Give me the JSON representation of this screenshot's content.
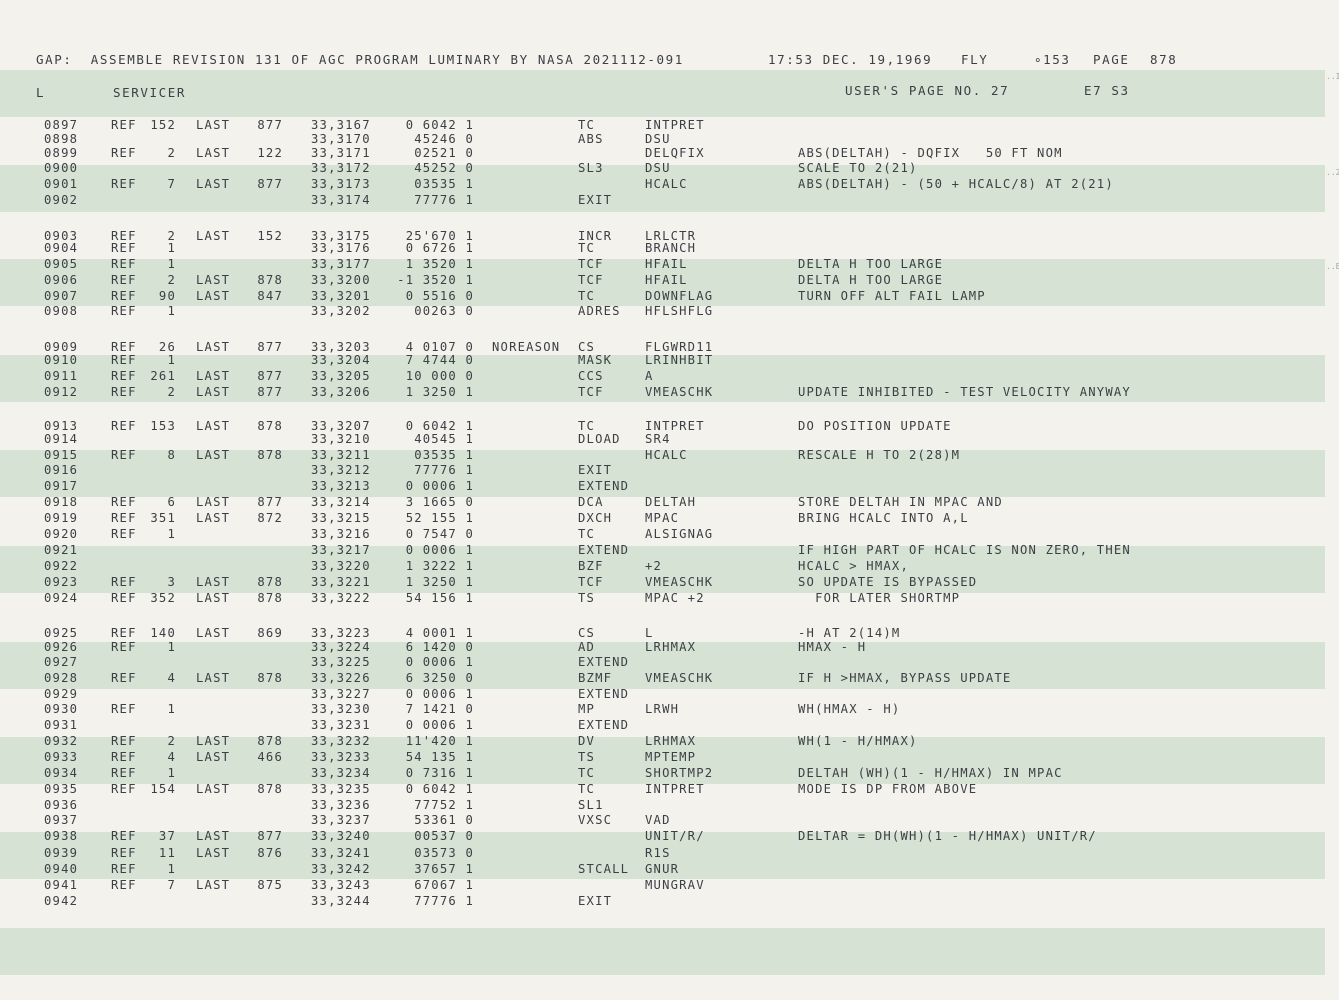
{
  "header": {
    "assembly": "GAP:  ASSEMBLE REVISION 131 OF AGC PROGRAM LUMINARY BY NASA 2021112-091",
    "timestamp": "17:53 DEC. 19,1969",
    "mode": "FLY",
    "counter": "∘153",
    "page_label": "PAGE",
    "page_number": "878"
  },
  "subheader": {
    "column_l": "L",
    "section": "SERVICER",
    "users_page": "USER'S PAGE NO. 27",
    "code": "E7 S3"
  },
  "rows": [
    {
      "line": "0897",
      "ref": "REF",
      "ref_n": "152",
      "last": "LAST",
      "last_n": "877",
      "addr": "33,3167",
      "word": "0 6042 1",
      "label": "",
      "op": "TC",
      "operand": "INTPRET",
      "comment": ""
    },
    {
      "line": "0898",
      "ref": "",
      "ref_n": "",
      "last": "",
      "last_n": "",
      "addr": "33,3170",
      "word": "45246 0",
      "label": "",
      "op": "ABS",
      "operand": "DSU",
      "comment": ""
    },
    {
      "line": "0899",
      "ref": "REF",
      "ref_n": "2",
      "last": "LAST",
      "last_n": "122",
      "addr": "33,3171",
      "word": "02521 0",
      "label": "",
      "op": "",
      "operand": "DELQFIX",
      "comment": "ABS(DELTAH) - DQFIX   50 FT NOM"
    },
    {
      "line": "0900",
      "ref": "",
      "ref_n": "",
      "last": "",
      "last_n": "",
      "addr": "33,3172",
      "word": "45252 0",
      "label": "",
      "op": "SL3",
      "operand": "DSU",
      "comment": "SCALE TO 2(21)"
    },
    {
      "line": "0901",
      "ref": "REF",
      "ref_n": "7",
      "last": "LAST",
      "last_n": "877",
      "addr": "33,3173",
      "word": "03535 1",
      "label": "",
      "op": "",
      "operand": "HCALC",
      "comment": "ABS(DELTAH) - (50 + HCALC/8) AT 2(21)"
    },
    {
      "line": "0902",
      "ref": "",
      "ref_n": "",
      "last": "",
      "last_n": "",
      "addr": "33,3174",
      "word": "77776 1",
      "label": "",
      "op": "EXIT",
      "operand": "",
      "comment": ""
    },
    {
      "line": "0903",
      "ref": "REF",
      "ref_n": "2",
      "last": "LAST",
      "last_n": "152",
      "addr": "33,3175",
      "word": "25'670 1",
      "label": "",
      "op": "INCR",
      "operand": "LRLCTR",
      "comment": ""
    },
    {
      "line": "0904",
      "ref": "REF",
      "ref_n": "1",
      "last": "",
      "last_n": "",
      "addr": "33,3176",
      "word": "0 6726 1",
      "label": "",
      "op": "TC",
      "operand": "BRANCH",
      "comment": ""
    },
    {
      "line": "0905",
      "ref": "REF",
      "ref_n": "1",
      "last": "",
      "last_n": "",
      "addr": "33,3177",
      "word": "1 3520 1",
      "label": "",
      "op": "TCF",
      "operand": "HFAIL",
      "comment": "DELTA H TOO LARGE"
    },
    {
      "line": "0906",
      "ref": "REF",
      "ref_n": "2",
      "last": "LAST",
      "last_n": "878",
      "addr": "33,3200",
      "word": "-1 3520 1",
      "label": "",
      "op": "TCF",
      "operand": "HFAIL",
      "comment": "DELTA H TOO LARGE"
    },
    {
      "line": "0907",
      "ref": "REF",
      "ref_n": "90",
      "last": "LAST",
      "last_n": "847",
      "addr": "33,3201",
      "word": "0 5516 0",
      "label": "",
      "op": "TC",
      "operand": "DOWNFLAG",
      "comment": "TURN OFF ALT FAIL LAMP"
    },
    {
      "line": "0908",
      "ref": "REF",
      "ref_n": "1",
      "last": "",
      "last_n": "",
      "addr": "33,3202",
      "word": "00263 0",
      "label": "",
      "op": "ADRES",
      "operand": "HFLSHFLG",
      "comment": ""
    },
    {
      "line": "0909",
      "ref": "REF",
      "ref_n": "26",
      "last": "LAST",
      "last_n": "877",
      "addr": "33,3203",
      "word": "4 0107 0",
      "label": "NOREASON",
      "op": "CS",
      "operand": "FLGWRD11",
      "comment": ""
    },
    {
      "line": "0910",
      "ref": "REF",
      "ref_n": "1",
      "last": "",
      "last_n": "",
      "addr": "33,3204",
      "word": "7 4744 0",
      "label": "",
      "op": "MASK",
      "operand": "LRINHBIT",
      "comment": ""
    },
    {
      "line": "0911",
      "ref": "REF",
      "ref_n": "261",
      "last": "LAST",
      "last_n": "877",
      "addr": "33,3205",
      "word": "10 000 0",
      "label": "",
      "op": "CCS",
      "operand": "A",
      "comment": ""
    },
    {
      "line": "0912",
      "ref": "REF",
      "ref_n": "2",
      "last": "LAST",
      "last_n": "877",
      "addr": "33,3206",
      "word": "1 3250 1",
      "label": "",
      "op": "TCF",
      "operand": "VMEASCHK",
      "comment": "UPDATE INHIBITED - TEST VELOCITY ANYWAY"
    },
    {
      "line": "0913",
      "ref": "REF",
      "ref_n": "153",
      "last": "LAST",
      "last_n": "878",
      "addr": "33,3207",
      "word": "0 6042 1",
      "label": "",
      "op": "TC",
      "operand": "INTPRET",
      "comment": "DO POSITION UPDATE"
    },
    {
      "line": "0914",
      "ref": "",
      "ref_n": "",
      "last": "",
      "last_n": "",
      "addr": "33,3210",
      "word": "40545 1",
      "label": "",
      "op": "DLOAD",
      "operand": "SR4",
      "comment": ""
    },
    {
      "line": "0915",
      "ref": "REF",
      "ref_n": "8",
      "last": "LAST",
      "last_n": "878",
      "addr": "33,3211",
      "word": "03535 1",
      "label": "",
      "op": "",
      "operand": "HCALC",
      "comment": "RESCALE H TO 2(28)M"
    },
    {
      "line": "0916",
      "ref": "",
      "ref_n": "",
      "last": "",
      "last_n": "",
      "addr": "33,3212",
      "word": "77776 1",
      "label": "",
      "op": "EXIT",
      "operand": "",
      "comment": ""
    },
    {
      "line": "0917",
      "ref": "",
      "ref_n": "",
      "last": "",
      "last_n": "",
      "addr": "33,3213",
      "word": "0 0006 1",
      "label": "",
      "op": "EXTEND",
      "operand": "",
      "comment": ""
    },
    {
      "line": "0918",
      "ref": "REF",
      "ref_n": "6",
      "last": "LAST",
      "last_n": "877",
      "addr": "33,3214",
      "word": "3 1665 0",
      "label": "",
      "op": "DCA",
      "operand": "DELTAH",
      "comment": "STORE DELTAH IN MPAC AND"
    },
    {
      "line": "0919",
      "ref": "REF",
      "ref_n": "351",
      "last": "LAST",
      "last_n": "872",
      "addr": "33,3215",
      "word": "52 155 1",
      "label": "",
      "op": "DXCH",
      "operand": "MPAC",
      "comment": "BRING HCALC INTO A,L"
    },
    {
      "line": "0920",
      "ref": "REF",
      "ref_n": "1",
      "last": "",
      "last_n": "",
      "addr": "33,3216",
      "word": "0 7547 0",
      "label": "",
      "op": "TC",
      "operand": "ALSIGNAG",
      "comment": ""
    },
    {
      "line": "0921",
      "ref": "",
      "ref_n": "",
      "last": "",
      "last_n": "",
      "addr": "33,3217",
      "word": "0 0006 1",
      "label": "",
      "op": "EXTEND",
      "operand": "",
      "comment": "IF HIGH PART OF HCALC IS NON ZERO, THEN"
    },
    {
      "line": "0922",
      "ref": "",
      "ref_n": "",
      "last": "",
      "last_n": "",
      "addr": "33,3220",
      "word": "1 3222 1",
      "label": "",
      "op": "BZF",
      "operand": "+2",
      "comment": "HCALC > HMAX,"
    },
    {
      "line": "0923",
      "ref": "REF",
      "ref_n": "3",
      "last": "LAST",
      "last_n": "878",
      "addr": "33,3221",
      "word": "1 3250 1",
      "label": "",
      "op": "TCF",
      "operand": "VMEASCHK",
      "comment": "SO UPDATE IS BYPASSED"
    },
    {
      "line": "0924",
      "ref": "REF",
      "ref_n": "352",
      "last": "LAST",
      "last_n": "878",
      "addr": "33,3222",
      "word": "54 156 1",
      "label": "",
      "op": "TS",
      "operand": "MPAC +2",
      "comment": "  FOR LATER SHORTMP"
    },
    {
      "line": "0925",
      "ref": "REF",
      "ref_n": "140",
      "last": "LAST",
      "last_n": "869",
      "addr": "33,3223",
      "word": "4 0001 1",
      "label": "",
      "op": "CS",
      "operand": "L",
      "comment": "-H AT 2(14)M"
    },
    {
      "line": "0926",
      "ref": "REF",
      "ref_n": "1",
      "last": "",
      "last_n": "",
      "addr": "33,3224",
      "word": "6 1420 0",
      "label": "",
      "op": "AD",
      "operand": "LRHMAX",
      "comment": "HMAX - H"
    },
    {
      "line": "0927",
      "ref": "",
      "ref_n": "",
      "last": "",
      "last_n": "",
      "addr": "33,3225",
      "word": "0 0006 1",
      "label": "",
      "op": "EXTEND",
      "operand": "",
      "comment": ""
    },
    {
      "line": "0928",
      "ref": "REF",
      "ref_n": "4",
      "last": "LAST",
      "last_n": "878",
      "addr": "33,3226",
      "word": "6 3250 0",
      "label": "",
      "op": "BZMF",
      "operand": "VMEASCHK",
      "comment": "IF H >HMAX, BYPASS UPDATE"
    },
    {
      "line": "0929",
      "ref": "",
      "ref_n": "",
      "last": "",
      "last_n": "",
      "addr": "33,3227",
      "word": "0 0006 1",
      "label": "",
      "op": "EXTEND",
      "operand": "",
      "comment": ""
    },
    {
      "line": "0930",
      "ref": "REF",
      "ref_n": "1",
      "last": "",
      "last_n": "",
      "addr": "33,3230",
      "word": "7 1421 0",
      "label": "",
      "op": "MP",
      "operand": "LRWH",
      "comment": "WH(HMAX - H)"
    },
    {
      "line": "0931",
      "ref": "",
      "ref_n": "",
      "last": "",
      "last_n": "",
      "addr": "33,3231",
      "word": "0 0006 1",
      "label": "",
      "op": "EXTEND",
      "operand": "",
      "comment": ""
    },
    {
      "line": "0932",
      "ref": "REF",
      "ref_n": "2",
      "last": "LAST",
      "last_n": "878",
      "addr": "33,3232",
      "word": "11'420 1",
      "label": "",
      "op": "DV",
      "operand": "LRHMAX",
      "comment": "WH(1 - H/HMAX)"
    },
    {
      "line": "0933",
      "ref": "REF",
      "ref_n": "4",
      "last": "LAST",
      "last_n": "466",
      "addr": "33,3233",
      "word": "54 135 1",
      "label": "",
      "op": "TS",
      "operand": "MPTEMP",
      "comment": ""
    },
    {
      "line": "0934",
      "ref": "REF",
      "ref_n": "1",
      "last": "",
      "last_n": "",
      "addr": "33,3234",
      "word": "0 7316 1",
      "label": "",
      "op": "TC",
      "operand": "SHORTMP2",
      "comment": "DELTAH (WH)(1 - H/HMAX) IN MPAC"
    },
    {
      "line": "0935",
      "ref": "REF",
      "ref_n": "154",
      "last": "LAST",
      "last_n": "878",
      "addr": "33,3235",
      "word": "0 6042 1",
      "label": "",
      "op": "TC",
      "operand": "INTPRET",
      "comment": "MODE IS DP FROM ABOVE"
    },
    {
      "line": "0936",
      "ref": "",
      "ref_n": "",
      "last": "",
      "last_n": "",
      "addr": "33,3236",
      "word": "77752 1",
      "label": "",
      "op": "SL1",
      "operand": "",
      "comment": ""
    },
    {
      "line": "0937",
      "ref": "",
      "ref_n": "",
      "last": "",
      "last_n": "",
      "addr": "33,3237",
      "word": "53361 0",
      "label": "",
      "op": "VXSC",
      "operand": "VAD",
      "comment": ""
    },
    {
      "line": "0938",
      "ref": "REF",
      "ref_n": "37",
      "last": "LAST",
      "last_n": "877",
      "addr": "33,3240",
      "word": "00537 0",
      "label": "",
      "op": "",
      "operand": "UNIT/R/",
      "comment": "DELTAR = DH(WH)(1 - H/HMAX) UNIT/R/"
    },
    {
      "line": "0939",
      "ref": "REF",
      "ref_n": "11",
      "last": "LAST",
      "last_n": "876",
      "addr": "33,3241",
      "word": "03573 0",
      "label": "",
      "op": "",
      "operand": "R1S",
      "comment": ""
    },
    {
      "line": "0940",
      "ref": "REF",
      "ref_n": "1",
      "last": "",
      "last_n": "",
      "addr": "33,3242",
      "word": "37657 1",
      "label": "",
      "op": "STCALL",
      "operand": "GNUR",
      "comment": ""
    },
    {
      "line": "0941",
      "ref": "REF",
      "ref_n": "7",
      "last": "LAST",
      "last_n": "875",
      "addr": "33,3243",
      "word": "67067 1",
      "label": "",
      "op": "",
      "operand": "MUNGRAV",
      "comment": ""
    },
    {
      "line": "0942",
      "ref": "",
      "ref_n": "",
      "last": "",
      "last_n": "",
      "addr": "33,3244",
      "word": "77776 1",
      "label": "",
      "op": "EXIT",
      "operand": "",
      "comment": ""
    }
  ]
}
